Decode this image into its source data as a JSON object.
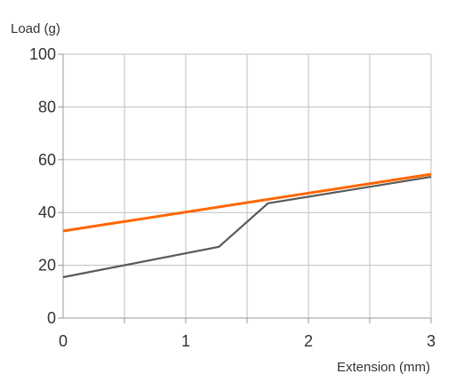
{
  "chart_data": {
    "type": "line",
    "xlabel": "Extension (mm)",
    "ylabel": "Load (g)",
    "xlim": [
      0,
      3
    ],
    "ylim": [
      0,
      100
    ],
    "x_ticks": [
      0,
      1,
      2,
      3
    ],
    "x_minor_ticks": [
      0.5,
      1.5,
      2.5
    ],
    "y_ticks": [
      0,
      20,
      40,
      60,
      80,
      100
    ],
    "x_tick_labels": [
      "0",
      "1",
      "2",
      "3"
    ],
    "y_tick_labels": [
      "0",
      "20",
      "40",
      "60",
      "80",
      "100"
    ],
    "grid": true,
    "legend": "none",
    "series": [
      {
        "color": "#595959",
        "x": [
          0,
          1.27,
          1.67,
          3
        ],
        "y": [
          15.5,
          27,
          43.5,
          53.5
        ]
      },
      {
        "color": "#ff6600",
        "x": [
          0,
          3
        ],
        "y": [
          33,
          54.5
        ]
      }
    ]
  }
}
